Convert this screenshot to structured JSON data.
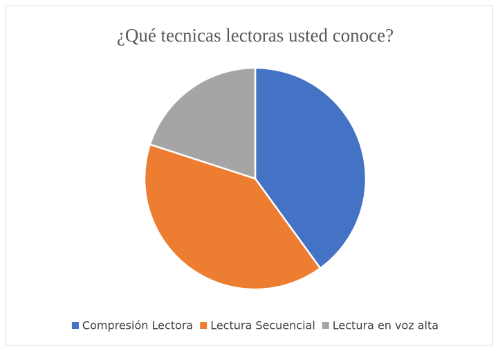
{
  "chart_data": {
    "type": "pie",
    "title": "¿Qué tecnicas lectoras usted conoce?",
    "categories": [
      "Compresión Lectora",
      "Lectura Secuencial",
      "Lectura en voz alta"
    ],
    "values": [
      40,
      40,
      20
    ],
    "colors": [
      "#4472c4",
      "#ed7d31",
      "#a5a5a5"
    ],
    "legend": "bottom"
  }
}
